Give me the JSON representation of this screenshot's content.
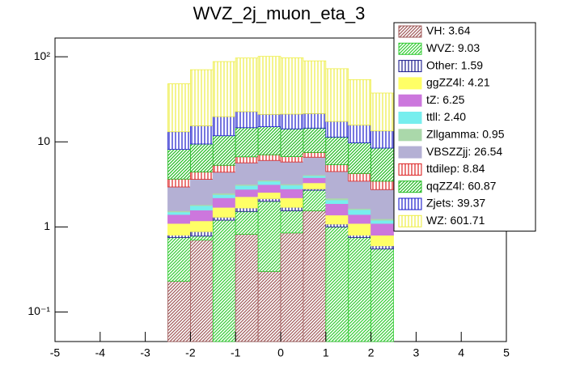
{
  "chart_data": {
    "type": "stacked_histogram",
    "title": "WVZ_2j_muon_eta_3",
    "bins": [
      -2.5,
      -2,
      -1.5,
      -1,
      -0.5,
      0,
      0.5,
      1,
      1.5,
      2,
      2.5
    ],
    "xlim": [
      -5,
      5
    ],
    "xticks": [
      -5,
      -4,
      -3,
      -2,
      -1,
      0,
      1,
      2,
      3,
      4,
      5
    ],
    "ylim": [
      0.045,
      166
    ],
    "log_y": true,
    "yticks": [
      {
        "value": 0.1,
        "label": "10⁻¹"
      },
      1,
      10,
      {
        "value": 100,
        "label": "10²"
      }
    ],
    "legend": "top-right",
    "series": [
      {
        "name": "VH: 3.64",
        "color": "#a05a5a",
        "hatch": "diagonal",
        "values": [
          0.23,
          0.7,
          0,
          0.82,
          0.3,
          0.85,
          1.55,
          0,
          0,
          0
        ]
      },
      {
        "name": "WVZ: 9.03",
        "color": "#33cc33",
        "hatch": "diagonal",
        "values": [
          0.52,
          0.08,
          1.2,
          0.7,
          1.7,
          0.7,
          1.15,
          1.0,
          0.75,
          0.55
        ]
      },
      {
        "name": "Other: 1.59",
        "color": "#1a1a8c",
        "hatch": "vertical",
        "values": [
          0.05,
          0.1,
          0.1,
          0.15,
          0.15,
          0.15,
          0.1,
          0.08,
          0.05,
          0.05
        ]
      },
      {
        "name": "ggZZ4l: 4.21",
        "color": "#ffff66",
        "hatch": "solid",
        "values": [
          0.3,
          0.3,
          0.4,
          0.6,
          0.4,
          0.5,
          0.5,
          0.3,
          0.3,
          0.2
        ]
      },
      {
        "name": "tZ: 6.25",
        "color": "#cc77dd",
        "hatch": "solid",
        "values": [
          0.3,
          0.4,
          0.5,
          0.5,
          0.6,
          0.6,
          0.5,
          0.5,
          0.3,
          0.3
        ]
      },
      {
        "name": "ttll: 2.40",
        "color": "#77eeee",
        "hatch": "solid",
        "values": [
          0.1,
          0.2,
          0.2,
          0.3,
          0.3,
          0.3,
          0.2,
          0.2,
          0.2,
          0.1
        ]
      },
      {
        "name": "Zllgamma: 0.95",
        "color": "#aad8aa",
        "hatch": "solid",
        "values": [
          0.05,
          0.05,
          0.1,
          0.1,
          0.1,
          0.1,
          0.1,
          0.1,
          0.05,
          0.05
        ]
      },
      {
        "name": "VBSZZjj: 26.54",
        "color": "#b4b0d4",
        "hatch": "solid",
        "values": [
          1.4,
          1.8,
          1.9,
          2.5,
          2.5,
          2.6,
          2.5,
          2.3,
          1.8,
          1.5
        ]
      },
      {
        "name": "ttdilep: 8.84",
        "color": "#dd2222",
        "hatch": "vertical",
        "values": [
          0.7,
          0.8,
          0.9,
          1.0,
          1.0,
          0.9,
          0.9,
          0.9,
          0.8,
          0.7
        ]
      },
      {
        "name": "qqZZ4l: 60.87",
        "color": "#22bb22",
        "hatch": "diagonal",
        "values": [
          4.5,
          5.0,
          6.5,
          8.0,
          8.0,
          7.5,
          7.0,
          6.0,
          5.5,
          5.0
        ]
      },
      {
        "name": "Zjets: 39.37",
        "color": "#1a1acc",
        "hatch": "vertical",
        "values": [
          5,
          6,
          8,
          8,
          6,
          7,
          7,
          6,
          6,
          5
        ]
      },
      {
        "name": "WZ: 601.71",
        "color": "#eeee44",
        "hatch": "vertical",
        "values": [
          35,
          55,
          68,
          74,
          80,
          76,
          68,
          55,
          38,
          24
        ]
      }
    ]
  }
}
